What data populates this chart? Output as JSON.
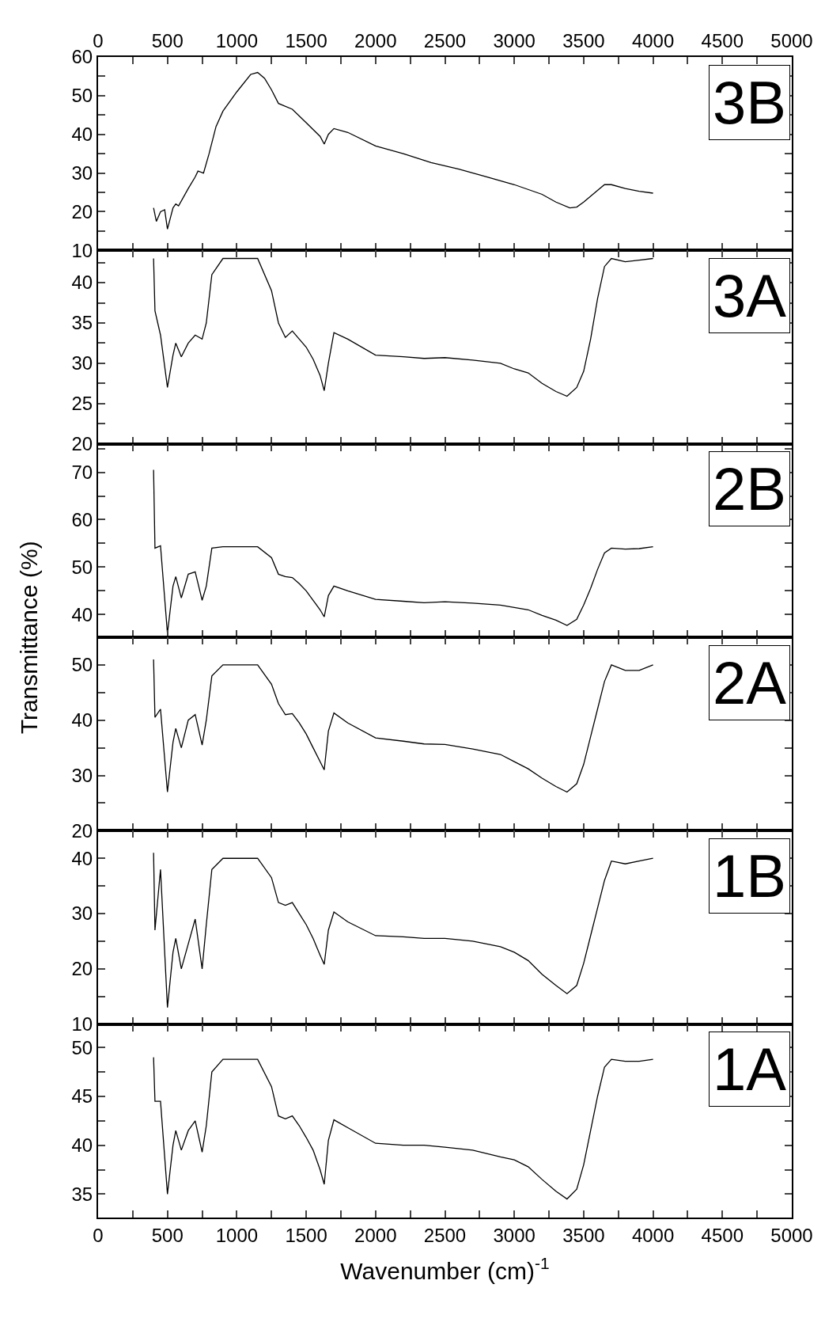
{
  "chart_data": [
    {
      "type": "line",
      "annotations": [
        "3B"
      ],
      "xlim": [
        0,
        5000
      ],
      "xticks": [
        0,
        {
          "value": 250,
          "label": null
        },
        500,
        {
          "value": 750,
          "label": null
        },
        1000,
        {
          "value": 1250,
          "label": null
        },
        1500,
        {
          "value": 1750,
          "label": null
        },
        2000,
        {
          "value": 2250,
          "label": null
        },
        2500,
        {
          "value": 2750,
          "label": null
        },
        3000,
        {
          "value": 3250,
          "label": null
        },
        3500,
        {
          "value": 3750,
          "label": null
        },
        4000,
        {
          "value": 4250,
          "label": null
        },
        4500,
        {
          "value": 4750,
          "label": null
        },
        5000
      ],
      "ylim": [
        10,
        60
      ],
      "yticks": [
        10,
        {
          "value": 15,
          "label": null
        },
        20,
        {
          "value": 25,
          "label": null
        },
        30,
        {
          "value": 35,
          "label": null
        },
        40,
        {
          "value": 45,
          "label": null
        },
        50,
        {
          "value": 55,
          "label": null
        },
        60
      ],
      "series": [
        {
          "color": "#000000",
          "x": [
            400,
            420,
            450,
            480,
            500,
            540,
            560,
            580,
            650,
            700,
            720,
            760,
            800,
            850,
            900,
            1000,
            1100,
            1150,
            1200,
            1250,
            1300,
            1400,
            1500,
            1600,
            1630,
            1660,
            1700,
            1800,
            2000,
            2200,
            2400,
            2600,
            2800,
            3000,
            3200,
            3300,
            3400,
            3450,
            3500,
            3600,
            3650,
            3700,
            3800,
            3900,
            4000
          ],
          "values": [
            21,
            17.5,
            20,
            20.5,
            15.5,
            21,
            22,
            21.5,
            26,
            29,
            30.5,
            30,
            35,
            42,
            46,
            51,
            55.5,
            56,
            54.5,
            51.5,
            48,
            46.5,
            43,
            39.5,
            37.5,
            40,
            41.5,
            40.5,
            37,
            35,
            32.7,
            31,
            29,
            27,
            24.5,
            22.5,
            21,
            21.2,
            22.5,
            25.5,
            27,
            27,
            26,
            25.3,
            24.8
          ]
        }
      ]
    },
    {
      "type": "line",
      "annotations": [
        "3A"
      ],
      "tick_labels": "y",
      "xlim": [
        0,
        5000
      ],
      "xticks": [
        0,
        {
          "value": 250,
          "label": null
        },
        500,
        {
          "value": 750,
          "label": null
        },
        1000,
        {
          "value": 1250,
          "label": null
        },
        1500,
        {
          "value": 1750,
          "label": null
        },
        2000,
        {
          "value": 2250,
          "label": null
        },
        2500,
        {
          "value": 2750,
          "label": null
        },
        3000,
        {
          "value": 3250,
          "label": null
        },
        3500,
        {
          "value": 3750,
          "label": null
        },
        4000,
        {
          "value": 4250,
          "label": null
        },
        4500,
        {
          "value": 4750,
          "label": null
        },
        5000
      ],
      "ylim": [
        20,
        44
      ],
      "yticks": [
        20,
        {
          "value": 22.5,
          "label": null
        },
        25,
        {
          "value": 27.5,
          "label": null
        },
        30,
        {
          "value": 32.5,
          "label": null
        },
        35,
        {
          "value": 37.5,
          "label": null
        },
        40,
        {
          "value": 42.5,
          "label": null
        }
      ],
      "series": [
        {
          "color": "#000000",
          "x": [
            400,
            410,
            450,
            500,
            540,
            560,
            600,
            650,
            700,
            750,
            780,
            820,
            900,
            1000,
            1150,
            1250,
            1300,
            1350,
            1400,
            1450,
            1500,
            1550,
            1600,
            1630,
            1660,
            1700,
            1800,
            2000,
            2200,
            2350,
            2500,
            2700,
            2900,
            3000,
            3100,
            3200,
            3300,
            3380,
            3450,
            3500,
            3550,
            3600,
            3650,
            3700,
            3800,
            3900,
            4000
          ],
          "values": [
            43,
            36.5,
            33.5,
            27,
            31,
            32.5,
            30.8,
            32.5,
            33.5,
            33,
            35,
            41,
            43,
            43,
            43,
            39,
            35,
            33.2,
            34,
            33,
            32,
            30.5,
            28.5,
            26.6,
            30,
            33.8,
            33,
            31,
            30.8,
            30.6,
            30.7,
            30.4,
            30,
            29.3,
            28.8,
            27.5,
            26.5,
            25.9,
            27,
            29,
            33,
            38,
            42,
            43,
            42.6,
            42.8,
            43
          ]
        }
      ]
    },
    {
      "type": "line",
      "annotations": [
        "2B"
      ],
      "ylabel": "Transmittance (%)",
      "tick_labels": "y",
      "xlim": [
        0,
        5000
      ],
      "xticks": [
        0,
        {
          "value": 250,
          "label": null
        },
        500,
        {
          "value": 750,
          "label": null
        },
        1000,
        {
          "value": 1250,
          "label": null
        },
        1500,
        {
          "value": 1750,
          "label": null
        },
        2000,
        {
          "value": 2250,
          "label": null
        },
        2500,
        {
          "value": 2750,
          "label": null
        },
        3000,
        {
          "value": 3250,
          "label": null
        },
        3500,
        {
          "value": 3750,
          "label": null
        },
        4000,
        {
          "value": 4250,
          "label": null
        },
        4500,
        {
          "value": 4750,
          "label": null
        },
        5000
      ],
      "ylim": [
        35.2,
        76
      ],
      "yticks": [
        40,
        {
          "value": 45,
          "label": null
        },
        50,
        {
          "value": 55,
          "label": null
        },
        60,
        {
          "value": 65,
          "label": null
        },
        70,
        {
          "value": 75,
          "label": null
        }
      ],
      "series": [
        {
          "color": "#000000",
          "x": [
            400,
            410,
            450,
            500,
            540,
            560,
            600,
            650,
            700,
            750,
            780,
            820,
            900,
            1000,
            1150,
            1250,
            1300,
            1350,
            1400,
            1450,
            1500,
            1550,
            1600,
            1630,
            1660,
            1700,
            1800,
            2000,
            2200,
            2350,
            2500,
            2700,
            2900,
            3000,
            3100,
            3200,
            3300,
            3380,
            3450,
            3500,
            3550,
            3600,
            3650,
            3700,
            3800,
            3900,
            4000
          ],
          "values": [
            70.5,
            54,
            54.5,
            36,
            46,
            48,
            43.5,
            48.5,
            49,
            43,
            46,
            54,
            54.3,
            54.3,
            54.3,
            52,
            48.5,
            48,
            47.8,
            46.5,
            45,
            43,
            41,
            39.5,
            44,
            46,
            45,
            43.2,
            42.8,
            42.5,
            42.7,
            42.4,
            42,
            41.5,
            41,
            39.8,
            38.8,
            37.7,
            39,
            42,
            45.5,
            49.5,
            53,
            54,
            53.8,
            53.9,
            54.3
          ]
        }
      ]
    },
    {
      "type": "line",
      "annotations": [
        "2A"
      ],
      "tick_labels": "y",
      "xlim": [
        0,
        5000
      ],
      "xticks": [
        0,
        {
          "value": 250,
          "label": null
        },
        500,
        {
          "value": 750,
          "label": null
        },
        1000,
        {
          "value": 1250,
          "label": null
        },
        1500,
        {
          "value": 1750,
          "label": null
        },
        2000,
        {
          "value": 2250,
          "label": null
        },
        2500,
        {
          "value": 2750,
          "label": null
        },
        3000,
        {
          "value": 3250,
          "label": null
        },
        3500,
        {
          "value": 3750,
          "label": null
        },
        4000,
        {
          "value": 4250,
          "label": null
        },
        4500,
        {
          "value": 4750,
          "label": null
        },
        5000
      ],
      "ylim": [
        20,
        55
      ],
      "yticks": [
        20,
        {
          "value": 25,
          "label": null
        },
        30,
        {
          "value": 35,
          "label": null
        },
        40,
        {
          "value": 45,
          "label": null
        },
        50
      ],
      "series": [
        {
          "color": "#000000",
          "x": [
            400,
            410,
            450,
            500,
            540,
            560,
            600,
            650,
            700,
            750,
            780,
            820,
            900,
            1000,
            1150,
            1250,
            1300,
            1350,
            1400,
            1450,
            1500,
            1550,
            1600,
            1630,
            1660,
            1700,
            1800,
            2000,
            2200,
            2350,
            2500,
            2700,
            2900,
            3000,
            3100,
            3200,
            3300,
            3380,
            3450,
            3500,
            3550,
            3600,
            3650,
            3700,
            3800,
            3900,
            4000
          ],
          "values": [
            51,
            40.5,
            42,
            27,
            36,
            38.5,
            35,
            40,
            41,
            35.5,
            40,
            48,
            50,
            50,
            50,
            46.5,
            43,
            41,
            41.2,
            39.5,
            37.5,
            35,
            32.5,
            31,
            38,
            41.3,
            39.5,
            36.8,
            36.2,
            35.7,
            35.6,
            34.8,
            33.8,
            32.5,
            31.2,
            29.5,
            28,
            27,
            28.5,
            32,
            37,
            42,
            47,
            50,
            49,
            49,
            50
          ]
        }
      ]
    },
    {
      "type": "line",
      "annotations": [
        "1B"
      ],
      "tick_labels": "y",
      "xlim": [
        0,
        5000
      ],
      "xticks": [
        0,
        {
          "value": 250,
          "label": null
        },
        500,
        {
          "value": 750,
          "label": null
        },
        1000,
        {
          "value": 1250,
          "label": null
        },
        1500,
        {
          "value": 1750,
          "label": null
        },
        2000,
        {
          "value": 2250,
          "label": null
        },
        2500,
        {
          "value": 2750,
          "label": null
        },
        3000,
        {
          "value": 3250,
          "label": null
        },
        3500,
        {
          "value": 3750,
          "label": null
        },
        4000,
        {
          "value": 4250,
          "label": null
        },
        4500,
        {
          "value": 4750,
          "label": null
        },
        5000
      ],
      "ylim": [
        10,
        45
      ],
      "yticks": [
        10,
        {
          "value": 15,
          "label": null
        },
        20,
        {
          "value": 25,
          "label": null
        },
        30,
        {
          "value": 35,
          "label": null
        },
        40
      ],
      "series": [
        {
          "color": "#000000",
          "x": [
            400,
            410,
            450,
            500,
            540,
            560,
            600,
            650,
            700,
            750,
            780,
            820,
            900,
            1000,
            1150,
            1250,
            1300,
            1350,
            1400,
            1450,
            1500,
            1550,
            1600,
            1630,
            1660,
            1700,
            1800,
            2000,
            2200,
            2350,
            2500,
            2700,
            2900,
            3000,
            3100,
            3200,
            3300,
            3380,
            3450,
            3500,
            3550,
            3600,
            3650,
            3700,
            3800,
            3900,
            4000
          ],
          "values": [
            41,
            27,
            38,
            13,
            23,
            25.5,
            20,
            24.5,
            29,
            20,
            28,
            38,
            40,
            40,
            40,
            36.5,
            32,
            31.5,
            32,
            30,
            28,
            25.5,
            22.5,
            20.8,
            27,
            30.3,
            28.5,
            26,
            25.8,
            25.5,
            25.5,
            25,
            24,
            23,
            21.5,
            19,
            17,
            15.5,
            17,
            21,
            26,
            31,
            36,
            39.5,
            39,
            39.5,
            40
          ]
        }
      ]
    },
    {
      "type": "line",
      "annotations": [
        "1A"
      ],
      "xlabel": "Wavenumber (cm)$^{-1}$",
      "xlim": [
        0,
        5000
      ],
      "xticks": [
        0,
        {
          "value": 250,
          "label": null
        },
        500,
        {
          "value": 750,
          "label": null
        },
        1000,
        {
          "value": 1250,
          "label": null
        },
        1500,
        {
          "value": 1750,
          "label": null
        },
        2000,
        {
          "value": 2250,
          "label": null
        },
        2500,
        {
          "value": 2750,
          "label": null
        },
        3000,
        {
          "value": 3250,
          "label": null
        },
        3500,
        {
          "value": 3750,
          "label": null
        },
        4000,
        {
          "value": 4250,
          "label": null
        },
        4500,
        {
          "value": 4750,
          "label": null
        },
        5000
      ],
      "ylim": [
        32.6,
        52.4
      ],
      "yticks": [
        35,
        {
          "value": 37.5,
          "label": null
        },
        40,
        {
          "value": 42.5,
          "label": null
        },
        45,
        {
          "value": 47.5,
          "label": null
        },
        50
      ],
      "series": [
        {
          "color": "#000000",
          "x": [
            400,
            410,
            450,
            500,
            540,
            560,
            600,
            650,
            700,
            750,
            780,
            820,
            900,
            1000,
            1150,
            1250,
            1300,
            1350,
            1400,
            1450,
            1500,
            1550,
            1600,
            1630,
            1660,
            1700,
            1800,
            2000,
            2200,
            2350,
            2500,
            2700,
            2900,
            3000,
            3100,
            3200,
            3300,
            3380,
            3450,
            3500,
            3550,
            3600,
            3650,
            3700,
            3800,
            3900,
            4000
          ],
          "values": [
            49,
            44.5,
            44.5,
            35,
            40,
            41.5,
            39.5,
            41.5,
            42.5,
            39.3,
            42,
            47.5,
            48.8,
            48.8,
            48.8,
            46,
            43,
            42.7,
            43,
            42,
            40.8,
            39.5,
            37.5,
            36,
            40.5,
            42.6,
            41.8,
            40.2,
            40,
            40,
            39.8,
            39.5,
            38.8,
            38.5,
            37.8,
            36.5,
            35.3,
            34.5,
            35.5,
            38,
            41.5,
            45,
            48,
            48.8,
            48.6,
            48.6,
            48.8
          ]
        }
      ]
    }
  ]
}
